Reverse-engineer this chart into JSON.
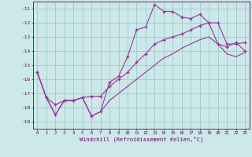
{
  "xlabel": "Windchill (Refroidissement éolien,°C)",
  "bg_color": "#cce8e8",
  "grid_color": "#99cccc",
  "line_color": "#993399",
  "xlim": [
    -0.5,
    23.5
  ],
  "ylim": [
    -19.5,
    -10.5
  ],
  "xticks": [
    0,
    1,
    2,
    3,
    4,
    5,
    6,
    7,
    8,
    9,
    10,
    11,
    12,
    13,
    14,
    15,
    16,
    17,
    18,
    19,
    20,
    21,
    22,
    23
  ],
  "yticks": [
    -19,
    -18,
    -17,
    -16,
    -15,
    -14,
    -13,
    -12,
    -11
  ],
  "x": [
    0,
    1,
    2,
    3,
    4,
    5,
    6,
    7,
    8,
    9,
    10,
    11,
    12,
    13,
    14,
    15,
    16,
    17,
    18,
    19,
    20,
    21,
    22,
    23
  ],
  "line_top": [
    -15.5,
    -17.3,
    -18.5,
    -17.5,
    -17.5,
    -17.3,
    -18.6,
    -18.3,
    -16.2,
    -15.8,
    -14.4,
    -12.5,
    -12.3,
    -10.7,
    -11.2,
    -11.2,
    -11.6,
    -11.7,
    -11.4,
    -12.0,
    -13.5,
    -13.7,
    -13.4,
    -14.0
  ],
  "line_mid": [
    -15.5,
    -17.3,
    -17.8,
    -17.5,
    -17.5,
    -17.3,
    -17.2,
    -17.2,
    -16.5,
    -16.0,
    -15.5,
    -14.8,
    -14.2,
    -13.5,
    -13.2,
    -13.0,
    -12.8,
    -12.5,
    -12.2,
    -12.0,
    -12.0,
    -13.5,
    -13.5,
    -13.4
  ],
  "line_bot": [
    -15.5,
    -17.3,
    -18.5,
    -17.5,
    -17.5,
    -17.3,
    -18.6,
    -18.3,
    -17.5,
    -17.0,
    -16.5,
    -16.0,
    -15.5,
    -15.0,
    -14.5,
    -14.2,
    -13.8,
    -13.5,
    -13.2,
    -13.0,
    -13.5,
    -14.2,
    -14.4,
    -14.1
  ]
}
